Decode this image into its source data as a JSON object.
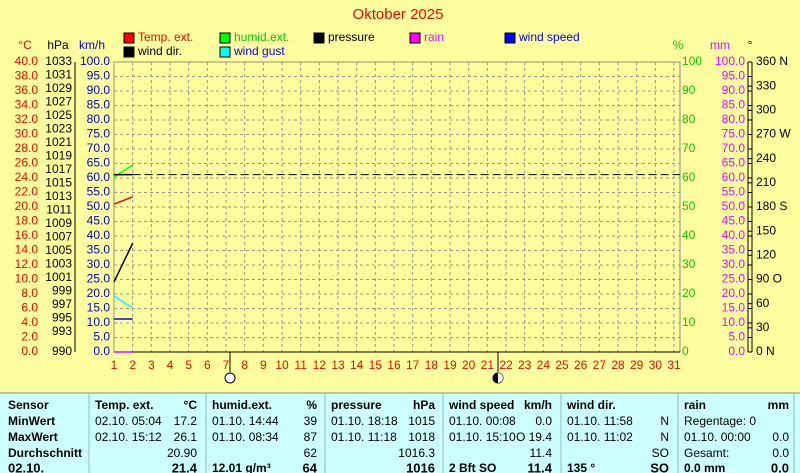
{
  "chart_data": {
    "type": "line",
    "title": "Oktober 2025",
    "x": [
      1,
      2
    ],
    "xlim": [
      1,
      31
    ],
    "xticks": [
      1,
      2,
      3,
      4,
      5,
      6,
      7,
      8,
      9,
      10,
      11,
      12,
      13,
      14,
      15,
      16,
      17,
      18,
      19,
      20,
      21,
      22,
      23,
      24,
      25,
      26,
      27,
      28,
      29,
      30,
      31
    ],
    "grid": true,
    "axes": [
      {
        "label": "°C",
        "color": "#ff0000",
        "lim": [
          0,
          40
        ],
        "ticks": [
          {
            "value": 0,
            "label": "0.0"
          },
          {
            "value": 2,
            "label": "2.0"
          },
          {
            "value": 4,
            "label": "4.0"
          },
          {
            "value": 6,
            "label": "6.0"
          },
          {
            "value": 8,
            "label": "8.0"
          },
          {
            "value": 10,
            "label": "10.0"
          },
          {
            "value": 12,
            "label": "12.0"
          },
          {
            "value": 14,
            "label": "14.0"
          },
          {
            "value": 16,
            "label": "16.0"
          },
          {
            "value": 18,
            "label": "18.0"
          },
          {
            "value": 20,
            "label": "20.0"
          },
          {
            "value": 22,
            "label": "22.0"
          },
          {
            "value": 24,
            "label": "24.0"
          },
          {
            "value": 26,
            "label": "26.0"
          },
          {
            "value": 28,
            "label": "28.0"
          },
          {
            "value": 30,
            "label": "30.0"
          },
          {
            "value": 32,
            "label": "32.0"
          },
          {
            "value": 34,
            "label": "34.0"
          },
          {
            "value": 36,
            "label": "36.0"
          },
          {
            "value": 38,
            "label": "38.0"
          },
          {
            "value": 40,
            "label": "40.0"
          }
        ]
      },
      {
        "label": "hPa",
        "color": "#000000",
        "lim": [
          990,
          1033
        ],
        "ticks": [
          990,
          993,
          995,
          997,
          999,
          1001,
          1003,
          1005,
          1007,
          1009,
          1011,
          1013,
          1015,
          1017,
          1019,
          1021,
          1023,
          1025,
          1027,
          1029,
          1031,
          1033
        ]
      },
      {
        "label": "km/h",
        "color": "#0000cc",
        "lim": [
          0,
          100
        ],
        "ticks": [
          {
            "value": 0,
            "label": "0.0"
          },
          {
            "value": 5,
            "label": "5.0"
          },
          {
            "value": 10,
            "label": "10.0"
          },
          {
            "value": 15,
            "label": "15.0"
          },
          {
            "value": 20,
            "label": "20.0"
          },
          {
            "value": 25,
            "label": "25.0"
          },
          {
            "value": 30,
            "label": "30.0"
          },
          {
            "value": 35,
            "label": "35.0"
          },
          {
            "value": 40,
            "label": "40.0"
          },
          {
            "value": 45,
            "label": "45.0"
          },
          {
            "value": 50,
            "label": "50.0"
          },
          {
            "value": 55,
            "label": "55.0"
          },
          {
            "value": 60,
            "label": "60.0"
          },
          {
            "value": 65,
            "label": "65.0"
          },
          {
            "value": 70,
            "label": "70.0"
          },
          {
            "value": 75,
            "label": "75.0"
          },
          {
            "value": 80,
            "label": "80.0"
          },
          {
            "value": 85,
            "label": "85.0"
          },
          {
            "value": 90,
            "label": "90.0"
          },
          {
            "value": 95,
            "label": "95.0"
          },
          {
            "value": 100,
            "label": "100.0"
          }
        ]
      },
      {
        "label": "%",
        "color": "#00cc00",
        "lim": [
          0,
          100
        ],
        "ticks": [
          0,
          10,
          20,
          30,
          40,
          50,
          60,
          70,
          80,
          90,
          100
        ]
      },
      {
        "label": "mm",
        "color": "#ff00ff",
        "lim": [
          0,
          100
        ],
        "ticks": [
          {
            "value": 0,
            "label": "0.0"
          },
          {
            "value": 5,
            "label": "5.0"
          },
          {
            "value": 10,
            "label": "10.0"
          },
          {
            "value": 15,
            "label": "15.0"
          },
          {
            "value": 20,
            "label": "20.0"
          },
          {
            "value": 25,
            "label": "25.0"
          },
          {
            "value": 30,
            "label": "30.0"
          },
          {
            "value": 35,
            "label": "35.0"
          },
          {
            "value": 40,
            "label": "40.0"
          },
          {
            "value": 45,
            "label": "45.0"
          },
          {
            "value": 50,
            "label": "50.0"
          },
          {
            "value": 55,
            "label": "55.0"
          },
          {
            "value": 60,
            "label": "60.0"
          },
          {
            "value": 65,
            "label": "65.0"
          },
          {
            "value": 70,
            "label": "70.0"
          },
          {
            "value": 75,
            "label": "75.0"
          },
          {
            "value": 80,
            "label": "80.0"
          },
          {
            "value": 85,
            "label": "85.0"
          },
          {
            "value": 90,
            "label": "90.0"
          },
          {
            "value": 95,
            "label": "95.0"
          },
          {
            "value": 100,
            "label": "100.0"
          }
        ]
      },
      {
        "label": "°",
        "color": "#000000",
        "lim": [
          0,
          360
        ],
        "ticks": [
          {
            "value": 0,
            "label": "0   N"
          },
          30,
          60,
          {
            "value": 90,
            "label": "90  O"
          },
          120,
          150,
          {
            "value": 180,
            "label": "180 S"
          },
          210,
          240,
          {
            "value": 270,
            "label": "270 W"
          },
          300,
          330,
          {
            "value": 360,
            "label": "360 N"
          }
        ]
      }
    ],
    "series": [
      {
        "name": "Temp. ext.",
        "color": "#ff0000",
        "text_color": "#ff0000",
        "axis": 0,
        "values": [
          20.4,
          21.4
        ]
      },
      {
        "name": "humid.ext.",
        "color": "#00ff00",
        "text_color": "#00cc00",
        "axis": 3,
        "values": [
          60.3,
          64.5
        ]
      },
      {
        "name": "pressure",
        "color": "#000000",
        "text_color": "#000000",
        "axis": 1,
        "values": [
          1016.3,
          1016.3
        ]
      },
      {
        "name": "rain",
        "color": "#ff00ff",
        "text_color": "#ff00ff",
        "axis": 4,
        "values": [
          0.0,
          0.0
        ]
      },
      {
        "name": "wind speed",
        "color": "#0000ff",
        "text_color": "#0000ff",
        "axis": 2,
        "values": [
          11.4,
          11.4
        ]
      },
      {
        "name": "wind dir.",
        "color": "#000000",
        "text_color": "#000000",
        "axis": 5,
        "values": [
          87,
          135
        ]
      },
      {
        "name": "wind gust",
        "color": "#00ffff",
        "text_color": "#0000ff",
        "axis": 2,
        "values": [
          19.3,
          15.2
        ]
      }
    ]
  },
  "table": {
    "rows": [
      [
        "Sensor",
        "Temp. ext.",
        "°C",
        "humid.ext.",
        "%",
        "pressure",
        "hPa",
        "wind speed",
        "km/h",
        "wind dir.",
        null,
        "rain",
        "mm"
      ],
      [
        "MinWert",
        "02.10.  05:04",
        "17.2",
        "01.10.  14:44",
        "39",
        "01.10.  18:18",
        "1015",
        "01.10.  00:08",
        "0.0",
        "01.10.  11:58",
        "N",
        "Regentage: 0",
        null
      ],
      [
        "MaxWert",
        "02.10.  15:12",
        "26.1",
        "01.10.  08:34",
        "87",
        "01.10.  11:18",
        "1018",
        "01.10.  15:10",
        "O 19.4",
        "01.10.  11:02",
        "N",
        "01.10.  00:00",
        "0.0"
      ],
      [
        "Durchschnitt",
        null,
        "20.90",
        null,
        "62",
        null,
        "1016.3",
        null,
        "11.4",
        null,
        "SO",
        "Gesamt:",
        "0.0"
      ],
      [
        "02.10.",
        null,
        "21.4",
        "12.01 g/m³",
        "64",
        null,
        "1016",
        "2 Bft SO",
        "11.4",
        "135 °",
        "SO",
        "0.0 mm",
        "0.0"
      ]
    ]
  }
}
